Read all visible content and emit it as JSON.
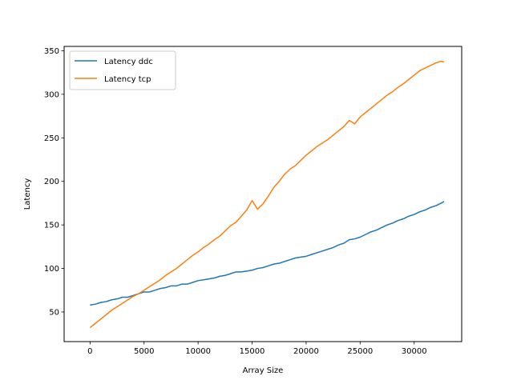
{
  "chart_data": {
    "type": "line",
    "title": "",
    "xlabel": "Array Size",
    "ylabel": "Latency",
    "xlim": [
      -2400,
      34400
    ],
    "ylim": [
      16,
      355
    ],
    "xticks": [
      0,
      5000,
      10000,
      15000,
      20000,
      25000,
      30000
    ],
    "yticks": [
      50,
      100,
      150,
      200,
      250,
      300,
      350
    ],
    "grid": false,
    "legend_position": "upper left",
    "series": [
      {
        "name": "Latency ddc",
        "color": "#1f77b4",
        "x": [
          0,
          500,
          1000,
          1500,
          2000,
          2500,
          3000,
          3500,
          4000,
          4500,
          5000,
          5500,
          6000,
          6500,
          7000,
          7500,
          8000,
          8500,
          9000,
          9500,
          10000,
          10500,
          11000,
          11500,
          12000,
          12500,
          13000,
          13500,
          14000,
          14500,
          15000,
          15500,
          16000,
          16500,
          17000,
          17500,
          18000,
          18500,
          19000,
          19500,
          20000,
          20500,
          21000,
          21500,
          22000,
          22500,
          23000,
          23500,
          24000,
          24500,
          25000,
          25500,
          26000,
          26500,
          27000,
          27500,
          28000,
          28500,
          29000,
          29500,
          30000,
          30500,
          31000,
          31500,
          32000,
          32500,
          32768
        ],
        "y": [
          58,
          59,
          61,
          62,
          64,
          65,
          67,
          67,
          69,
          71,
          73,
          73,
          75,
          77,
          78,
          80,
          80,
          82,
          82,
          84,
          86,
          87,
          88,
          89,
          91,
          92,
          94,
          96,
          96,
          97,
          98,
          100,
          101,
          103,
          105,
          106,
          108,
          110,
          112,
          113,
          114,
          116,
          118,
          120,
          122,
          124,
          127,
          129,
          133,
          134,
          136,
          139,
          142,
          144,
          147,
          150,
          152,
          155,
          157,
          160,
          162,
          165,
          167,
          170,
          172,
          175,
          177
        ]
      },
      {
        "name": "Latency tcp",
        "color": "#ff7f0e",
        "x": [
          0,
          500,
          1000,
          1500,
          2000,
          2500,
          3000,
          3500,
          4000,
          4500,
          5000,
          5500,
          6000,
          6500,
          7000,
          7500,
          8000,
          8500,
          9000,
          9500,
          10000,
          10500,
          11000,
          11500,
          12000,
          12500,
          13000,
          13500,
          14000,
          14500,
          15000,
          15500,
          16000,
          16500,
          17000,
          17500,
          18000,
          18500,
          19000,
          19500,
          20000,
          20500,
          21000,
          21500,
          22000,
          22500,
          23000,
          23500,
          24000,
          24500,
          25000,
          25500,
          26000,
          26500,
          27000,
          27500,
          28000,
          28500,
          29000,
          29500,
          30000,
          30500,
          31000,
          31500,
          32000,
          32500,
          32768
        ],
        "y": [
          32,
          37,
          42,
          47,
          52,
          56,
          60,
          64,
          68,
          71,
          75,
          79,
          83,
          87,
          92,
          96,
          100,
          105,
          110,
          115,
          119,
          124,
          128,
          133,
          137,
          143,
          149,
          153,
          160,
          167,
          178,
          168,
          174,
          183,
          193,
          200,
          208,
          214,
          218,
          224,
          230,
          235,
          240,
          244,
          248,
          253,
          258,
          263,
          270,
          266,
          274,
          279,
          284,
          289,
          294,
          299,
          303,
          308,
          312,
          317,
          322,
          327,
          330,
          333,
          336,
          338,
          337
        ]
      }
    ]
  }
}
